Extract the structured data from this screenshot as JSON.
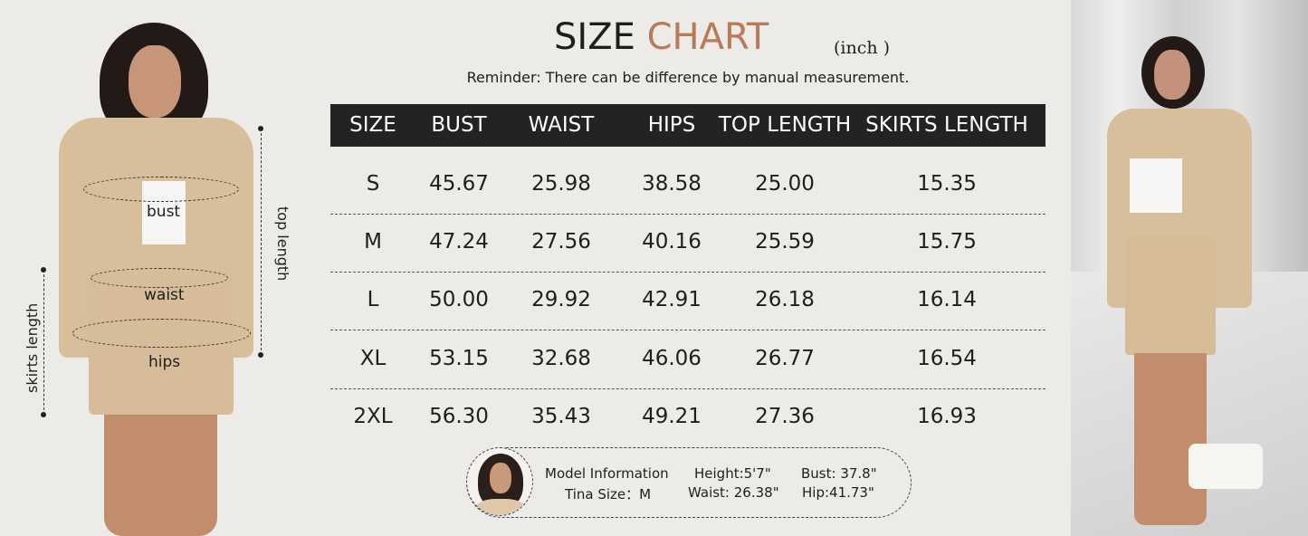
{
  "title": {
    "part1": "SIZE",
    "part2": "CHART",
    "unit": "(inch )",
    "accent_color": "#b97a58"
  },
  "reminder": "Reminder: There can be difference by manual measurement.",
  "table": {
    "headers": [
      "SIZE",
      "BUST",
      "WAIST",
      "HIPS",
      "TOP LENGTH",
      "SKIRTS LENGTH"
    ],
    "rows": [
      [
        "S",
        "45.67",
        "25.98",
        "38.58",
        "25.00",
        "15.35"
      ],
      [
        "M",
        "47.24",
        "27.56",
        "40.16",
        "25.59",
        "15.75"
      ],
      [
        "L",
        "50.00",
        "29.92",
        "42.91",
        "26.18",
        "16.14"
      ],
      [
        "XL",
        "53.15",
        "32.68",
        "46.06",
        "26.77",
        "16.54"
      ],
      [
        "2XL",
        "56.30",
        "35.43",
        "49.21",
        "27.36",
        "16.93"
      ]
    ]
  },
  "diagram": {
    "bust": "bust",
    "waist": "waist",
    "hips": "hips",
    "top_length": "top length",
    "skirts_length": "skirts length",
    "garment_color": "#d8bf9c"
  },
  "model": {
    "heading": "Model Information",
    "size": "Tina Size：M",
    "height": "Height:5'7\"",
    "waist": "Waist: 26.38\"",
    "bust": "Bust: 37.8\"",
    "hip": "Hip:41.73\""
  }
}
